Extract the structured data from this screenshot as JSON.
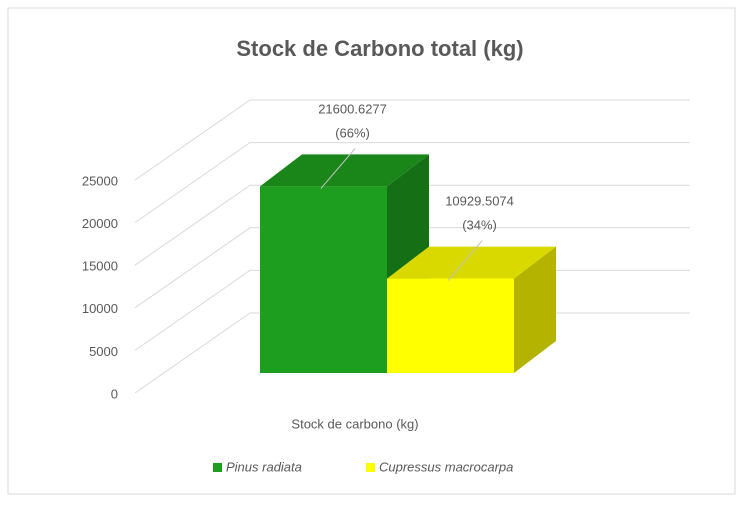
{
  "chart_data": {
    "type": "bar3d",
    "title": "Stock de Carbono total (kg)",
    "categories": [
      "Stock de carbono (kg)"
    ],
    "series": [
      {
        "name": "Pinus radiata",
        "color": "#1e9e1e",
        "values": [
          21600.6277
        ],
        "value_labels": [
          "21600.6277\n(66%)"
        ]
      },
      {
        "name": "Cupressus macrocarpa",
        "color": "#ffff00",
        "values": [
          10929.5074
        ],
        "value_labels": [
          "10929.5074\n(34%)"
        ]
      }
    ],
    "ylim": [
      0,
      25000
    ],
    "yticks": [
      0,
      5000,
      10000,
      15000,
      20000,
      25000
    ],
    "grid": true,
    "legend": "bottom"
  }
}
